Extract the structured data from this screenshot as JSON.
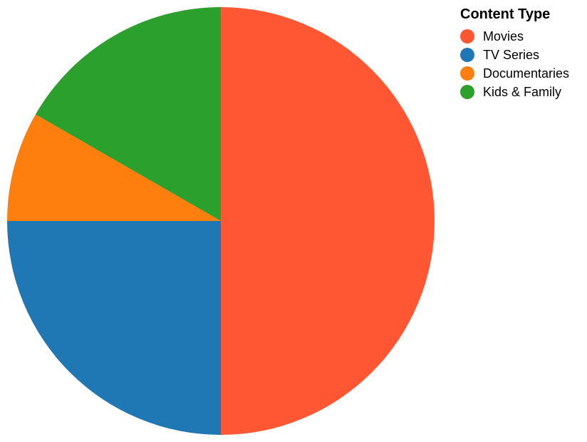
{
  "chart_data": {
    "type": "pie",
    "legend_title": "Content Type",
    "legend_position": "top-right",
    "slices": [
      {
        "label": "Movies",
        "value": 50,
        "color": "#FF5733"
      },
      {
        "label": "TV Series",
        "value": 25,
        "color": "#1F77B4"
      },
      {
        "label": "Documentaries",
        "value": 8.3,
        "color": "#FF7F0E"
      },
      {
        "label": "Kids & Family",
        "value": 16.7,
        "color": "#2CA02C"
      }
    ]
  }
}
